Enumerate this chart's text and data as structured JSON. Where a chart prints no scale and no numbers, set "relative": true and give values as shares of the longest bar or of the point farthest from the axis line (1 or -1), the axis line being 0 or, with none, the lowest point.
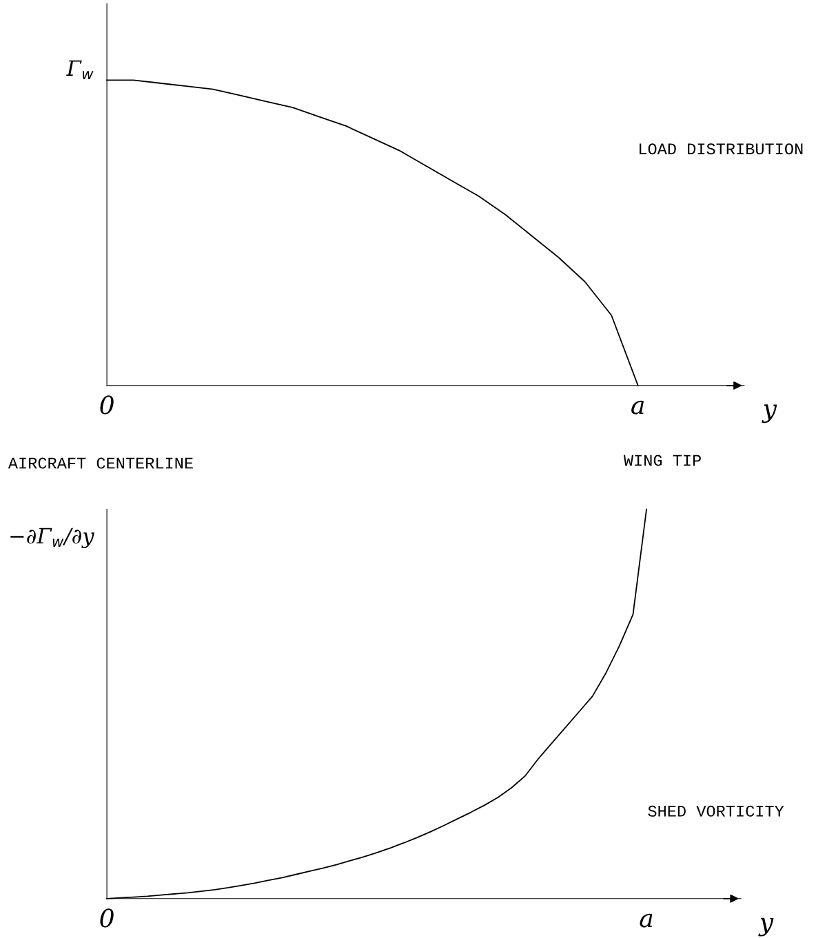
{
  "chart_data": [
    {
      "type": "line",
      "relative": true,
      "ylabel": "Γ$_{w}$",
      "xlabel": "y",
      "annotations": [
        "LOAD DISTRIBUTION",
        "AIRCRAFT CENTERLINE",
        "WING TIP"
      ],
      "grid": false,
      "legend": false,
      "marker": "none",
      "line_style": "solid",
      "categories": [
        "0",
        null,
        null,
        null,
        null,
        null,
        null,
        null,
        null,
        null,
        null,
        null,
        null,
        null,
        null,
        null,
        null,
        null,
        null,
        null,
        "a",
        null,
        null,
        null,
        null
      ],
      "series": [
        {
          "color": "#000000",
          "values": [
            1,
            1.0,
            0.99,
            0.98,
            0.97,
            0.95,
            0.93,
            0.91,
            0.88,
            0.85,
            0.81,
            0.77,
            0.72,
            0.67,
            0.62,
            0.56,
            0.49,
            0.42,
            0.34,
            0.23,
            0,
            null,
            null,
            null,
            null
          ]
        }
      ]
    },
    {
      "type": "line",
      "relative": true,
      "ylabel": "−∂Γ$_{w}$/∂y",
      "xlabel": "y",
      "annotations": [
        "SHED VORTICITY"
      ],
      "grid": false,
      "legend": false,
      "marker": "none",
      "line_style": "solid",
      "categories": [
        "0",
        null,
        null,
        null,
        null,
        null,
        null,
        null,
        null,
        null,
        null,
        null,
        null,
        null,
        null,
        null,
        null,
        null,
        null,
        null,
        null,
        null,
        null,
        null,
        null,
        null,
        null,
        null,
        null,
        null,
        null,
        null,
        null,
        null,
        null,
        null,
        null,
        null,
        null,
        null,
        "a",
        null,
        null,
        null,
        null,
        null,
        null,
        null
      ],
      "series": [
        {
          "color": "#000000",
          "values": [
            0,
            0.002,
            0.004,
            0.006,
            0.009,
            0.012,
            0.015,
            0.019,
            0.023,
            0.028,
            0.034,
            0.04,
            0.047,
            0.054,
            0.062,
            0.07,
            0.078,
            0.087,
            0.097,
            0.107,
            0.118,
            0.13,
            0.143,
            0.157,
            0.172,
            0.188,
            0.205,
            0.222,
            0.24,
            0.26,
            0.285,
            0.315,
            0.36,
            0.4,
            0.44,
            0.48,
            0.52,
            0.58,
            0.65,
            0.73,
            1.0,
            null,
            null,
            null,
            null,
            null,
            null,
            null
          ]
        }
      ]
    }
  ]
}
